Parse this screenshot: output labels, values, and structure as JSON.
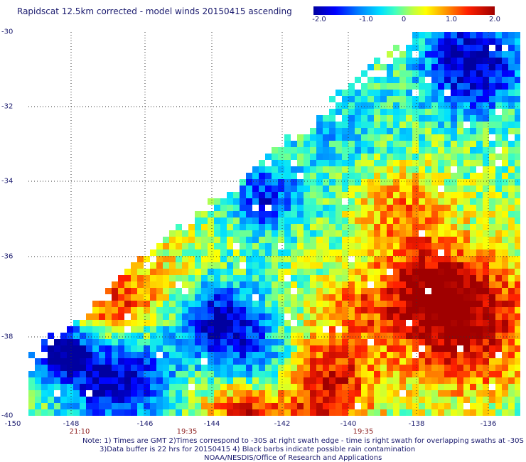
{
  "title": "Rapidscat 12.5km corrected - model winds 20150415 ascending",
  "colorbar": {
    "ticks": [
      "-2.0",
      "-1.0",
      "0",
      "1.0",
      "2.0"
    ],
    "range": [
      -2.0,
      2.0
    ]
  },
  "axes": {
    "lat_labels": [
      "-30",
      "-32",
      "-34",
      "-36",
      "-38",
      "-40"
    ],
    "lon_labels": [
      "-150",
      "-148",
      "-146",
      "-144",
      "-142",
      "-140",
      "-138",
      "-136"
    ],
    "time_labels": [
      "21:10",
      "19:35",
      "19:35"
    ]
  },
  "notes": {
    "line1": "Note: 1) Times are GMT 2)Times correspond to -30S at right swath edge - time is right swath for overlapping swaths at -30S",
    "line2": "3)Data buffer is 22 hrs for 20150415 4) Black barbs indicate possible rain contamination",
    "line3": "NOAA/NESDIS/Office of Research and Applications"
  },
  "colors": {
    "text": "#1a1a6e",
    "time": "#8b1a1a",
    "grid": "#333333"
  }
}
